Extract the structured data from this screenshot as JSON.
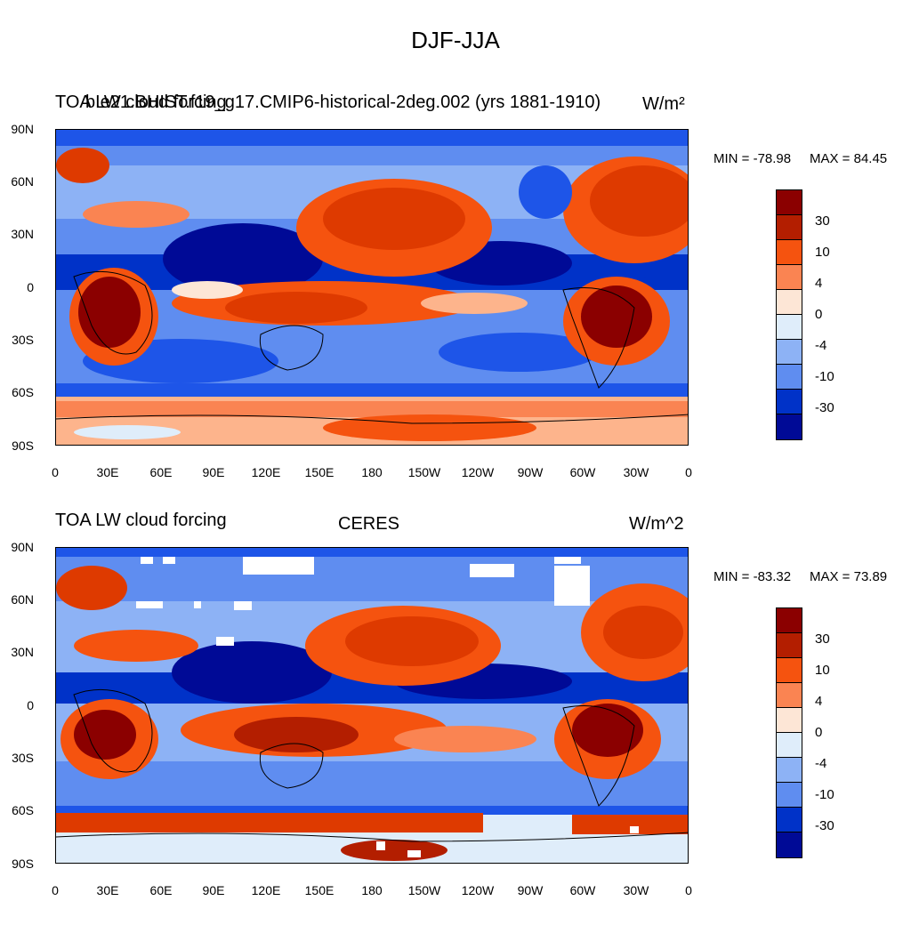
{
  "title": "DJF-JJA",
  "colorbar": {
    "colors": [
      "#8b0000",
      "#b31e00",
      "#de3a00",
      "#f5530f",
      "#fa8452",
      "#fdb48c",
      "#fde6d6",
      "#dfedfa",
      "#b5d2f8",
      "#8db2f5",
      "#5f8df0",
      "#1e55e8",
      "#0032c8",
      "#000a96"
    ],
    "labels": [
      "30",
      "10",
      "4",
      "0",
      "-4",
      "-10",
      "-30"
    ]
  },
  "axes": {
    "lat_labels": [
      "90N",
      "60N",
      "30N",
      "0",
      "30S",
      "60S",
      "90S"
    ],
    "lon_labels": [
      "0",
      "30E",
      "60E",
      "90E",
      "120E",
      "150E",
      "180",
      "150W",
      "120W",
      "90W",
      "60W",
      "30W",
      "0"
    ]
  },
  "panels": [
    {
      "left_title": "TOA LW cloud forcing",
      "center_title": "b.e21.BHIST.f19_g17.CMIP6-historical-2deg.002 (yrs 1881-1910)",
      "units": "W/m²",
      "min_label": "MIN = -78.98",
      "max_label": "MAX =  84.45"
    },
    {
      "left_title": "TOA LW cloud forcing",
      "center_title": "CERES",
      "units": "W/m^2",
      "min_label": "MIN = -83.32",
      "max_label": "MAX =  73.89"
    }
  ]
}
